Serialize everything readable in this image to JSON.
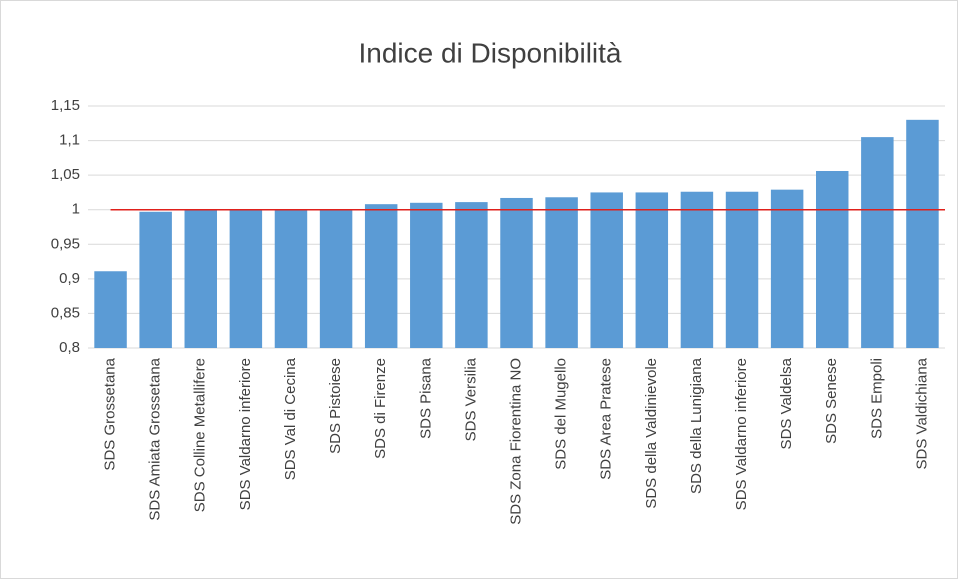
{
  "chart_data": {
    "type": "bar",
    "title": "Indice di Disponibilità",
    "categories": [
      "SDS Grossetana",
      "SDS Amiata Grossetana",
      "SDS Colline Metallifere",
      "SDS Valdarno inferiore",
      "SDS Val di Cecina",
      "SDS Pistoiese",
      "SDS di Firenze",
      "SDS Pisana",
      "SDS Versilia",
      "SDS Zona Fiorentina NO",
      "SDS del Mugello",
      "SDS Area Pratese",
      "SDS della Valdinievole",
      "SDS della Lunigiana",
      "SDS Valdarno inferiore",
      "SDS Valdelsa",
      "SDS Senese",
      "SDS Empoli",
      "SDS Valdichiana"
    ],
    "values": [
      0.911,
      0.997,
      1.0,
      1.0,
      1.0,
      1.0,
      1.008,
      1.01,
      1.011,
      1.017,
      1.018,
      1.025,
      1.025,
      1.026,
      1.026,
      1.029,
      1.056,
      1.105,
      1.13
    ],
    "color": "#5b9bd5",
    "ylim": [
      0.8,
      1.15
    ],
    "yticks": [
      {
        "value": 0.8,
        "label": "0,8"
      },
      {
        "value": 0.85,
        "label": "0,85"
      },
      {
        "value": 0.9,
        "label": "0,9"
      },
      {
        "value": 0.95,
        "label": "0,95"
      },
      1,
      {
        "value": 1.05,
        "label": "1,05"
      },
      {
        "value": 1.1,
        "label": "1,1"
      },
      {
        "value": 1.15,
        "label": "1,15"
      }
    ],
    "grid": true,
    "reference_line": {
      "value": 1,
      "color": "#e0201b"
    }
  }
}
